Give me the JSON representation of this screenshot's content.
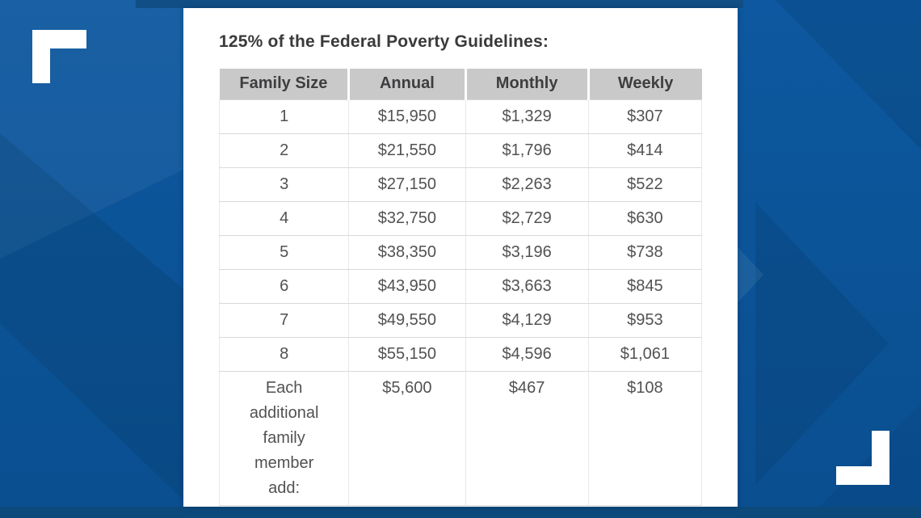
{
  "chart_data": {
    "type": "table",
    "title": "125% of the Federal Poverty Guidelines:",
    "columns": [
      "Family Size",
      "Annual",
      "Monthly",
      "Weekly"
    ],
    "rows": [
      [
        "1",
        "$15,950",
        "$1,329",
        "$307"
      ],
      [
        "2",
        "$21,550",
        "$1,796",
        "$414"
      ],
      [
        "3",
        "$27,150",
        "$2,263",
        "$522"
      ],
      [
        "4",
        "$32,750",
        "$2,729",
        "$630"
      ],
      [
        "5",
        "$38,350",
        "$3,196",
        "$738"
      ],
      [
        "6",
        "$43,950",
        "$3,663",
        "$845"
      ],
      [
        "7",
        "$49,550",
        "$4,129",
        "$953"
      ],
      [
        "8",
        "$55,150",
        "$4,596",
        "$1,061"
      ],
      [
        "Each additional family member add:",
        "$5,600",
        "$467",
        "$108"
      ]
    ],
    "layout_hints": {
      "header_background": "gray",
      "values_alignment": "center",
      "last_row_label_wraps": true
    }
  },
  "colors": {
    "background_blue": "#0b5396",
    "band_navy_top": "#104e85",
    "band_navy_bottom": "#0d4a7c",
    "card_white": "#ffffff",
    "header_gray": "#c9c9c9",
    "header_text": "#3e3e40",
    "cell_text": "#525254",
    "title_text": "#3a3a3c",
    "bracket_white": "#ffffff"
  },
  "decorations": {
    "top_left_bracket": "white corner bracket",
    "bottom_right_bracket": "white corner bracket"
  }
}
